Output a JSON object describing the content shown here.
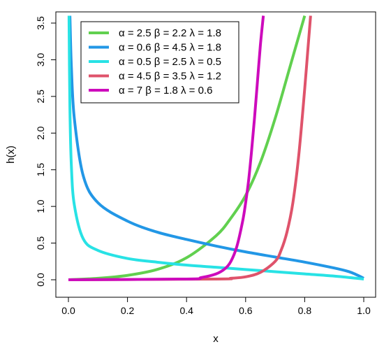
{
  "chart_data": {
    "type": "line",
    "title": "",
    "xlabel": "x",
    "ylabel": "h(x)",
    "xlim": [
      0,
      1
    ],
    "ylim": [
      0,
      3.5
    ],
    "x_ticks": [
      "0.0",
      "0.2",
      "0.4",
      "0.6",
      "0.8",
      "1.0"
    ],
    "y_ticks": [
      "0.0",
      "0.5",
      "1.0",
      "1.5",
      "2.0",
      "2.5",
      "3.0",
      "3.5"
    ],
    "grid": false,
    "legend_position": "top-left",
    "series": [
      {
        "name": "α = 2.5  β = 2.2  λ = 1.8",
        "color": "#61d04f",
        "x": [
          0,
          0.1,
          0.2,
          0.3,
          0.4,
          0.5,
          0.55,
          0.6,
          0.65,
          0.7,
          0.75,
          0.8
        ],
        "y": [
          0,
          0.02,
          0.06,
          0.14,
          0.3,
          0.6,
          0.84,
          1.15,
          1.6,
          2.2,
          2.9,
          3.6
        ]
      },
      {
        "name": "α = 0.6  β = 4.5  λ = 1.8",
        "color": "#2297e6",
        "x": [
          0.005,
          0.01,
          0.02,
          0.05,
          0.1,
          0.2,
          0.3,
          0.4,
          0.5,
          0.6,
          0.7,
          0.8,
          0.9,
          0.95,
          0.98,
          1.0
        ],
        "y": [
          3.6,
          2.9,
          2.2,
          1.42,
          1.05,
          0.8,
          0.65,
          0.55,
          0.46,
          0.38,
          0.31,
          0.24,
          0.16,
          0.11,
          0.06,
          0.02
        ]
      },
      {
        "name": "α = 0.5  β = 2.5  λ = 0.5",
        "color": "#28e2e5",
        "x": [
          0.002,
          0.005,
          0.01,
          0.02,
          0.05,
          0.1,
          0.2,
          0.3,
          0.4,
          0.5,
          0.6,
          0.7,
          0.8,
          0.9,
          1.0
        ],
        "y": [
          3.6,
          2.35,
          1.55,
          1.02,
          0.56,
          0.4,
          0.29,
          0.24,
          0.2,
          0.17,
          0.14,
          0.11,
          0.08,
          0.05,
          0.01
        ]
      },
      {
        "name": "α = 4.5  β = 3.5  λ = 1.2",
        "color": "#df536b",
        "x": [
          0,
          0.5,
          0.55,
          0.6,
          0.65,
          0.7,
          0.72,
          0.74,
          0.76,
          0.78,
          0.8,
          0.81,
          0.82
        ],
        "y": [
          0,
          0.01,
          0.02,
          0.04,
          0.1,
          0.25,
          0.4,
          0.65,
          1.05,
          1.7,
          2.6,
          3.1,
          3.6
        ]
      },
      {
        "name": "α = 7  β = 1.8  λ = 0.6",
        "color": "#cd0bbc",
        "x": [
          0,
          0.4,
          0.45,
          0.5,
          0.53,
          0.55,
          0.57,
          0.59,
          0.6,
          0.61,
          0.62,
          0.63,
          0.64,
          0.65,
          0.66
        ],
        "y": [
          0,
          0.01,
          0.03,
          0.08,
          0.15,
          0.25,
          0.45,
          0.8,
          1.05,
          1.35,
          1.75,
          2.2,
          2.7,
          3.2,
          3.6
        ]
      }
    ]
  }
}
